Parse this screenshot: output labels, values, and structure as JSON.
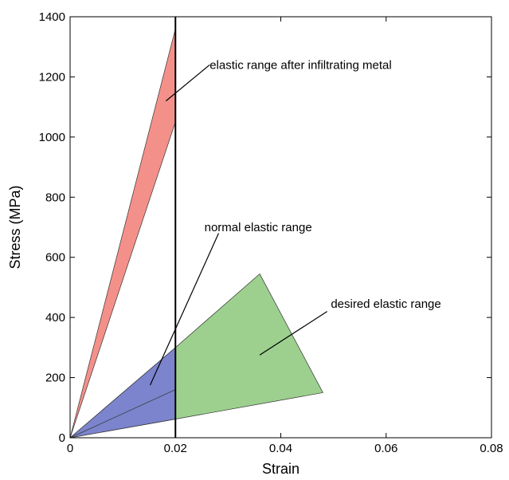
{
  "chart_data": {
    "type": "area",
    "xlabel": "Strain",
    "ylabel": "Stress (MPa)",
    "xlim": [
      0,
      0.08
    ],
    "ylim": [
      0,
      1400
    ],
    "xticks": [
      0,
      0.02,
      0.04,
      0.06,
      0.08
    ],
    "xtick_labels": [
      "0",
      "0.02",
      "0.04",
      "0.06",
      "0.08"
    ],
    "yticks": [
      0,
      200,
      400,
      600,
      800,
      1000,
      1200,
      1400
    ],
    "ytick_labels": [
      "0",
      "200",
      "400",
      "600",
      "800",
      "1000",
      "1200",
      "1400"
    ],
    "grid": false,
    "colors": {
      "infiltrated_fill": "#f4908a",
      "normal_fill": "#7b84cc",
      "desired_fill": "#9dd08f",
      "edge": "#333333",
      "line": "#000000"
    },
    "regions": [
      {
        "id": "infiltrated",
        "polygon": [
          [
            0,
            0
          ],
          [
            0.02,
            1360
          ],
          [
            0.02,
            1050
          ]
        ]
      },
      {
        "id": "desired",
        "polygon": [
          [
            0,
            0
          ],
          [
            0.02,
            300
          ],
          [
            0.036,
            545
          ],
          [
            0.048,
            150
          ],
          [
            0.02,
            62
          ]
        ]
      },
      {
        "id": "normal",
        "polygon": [
          [
            0,
            0
          ],
          [
            0.02,
            300
          ],
          [
            0.02,
            62
          ]
        ],
        "inner_line": [
          [
            0,
            0
          ],
          [
            0.02,
            160
          ]
        ]
      }
    ],
    "vertical_line": {
      "x": 0.02
    },
    "annotations": [
      {
        "id": "infiltrated",
        "text": "elastic range after infiltrating metal",
        "text_at": [
          0.0265,
          1240
        ],
        "line_from": [
          0.0265,
          1240
        ],
        "line_to": [
          0.0182,
          1120
        ]
      },
      {
        "id": "normal",
        "text": "normal elastic range",
        "text_at": [
          0.0255,
          700
        ],
        "line_from": [
          0.0282,
          680
        ],
        "line_to": [
          0.0152,
          175
        ]
      },
      {
        "id": "desired",
        "text": "desired elastic range",
        "text_at": [
          0.0495,
          445
        ],
        "line_from": [
          0.0488,
          420
        ],
        "line_to": [
          0.036,
          275
        ]
      }
    ]
  }
}
